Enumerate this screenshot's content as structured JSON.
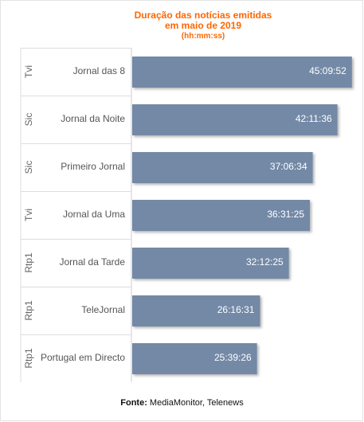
{
  "chart_data": {
    "type": "bar",
    "orientation": "horizontal",
    "title_lines": [
      "Duração das notícias emitidas",
      "em maio de 2019",
      "(hh:mm:ss)"
    ],
    "groups": [
      "Tvi",
      "Sic",
      "Sic",
      "Tvi",
      "Rtp1",
      "Rtp1",
      "Rtp1"
    ],
    "categories": [
      "Jornal das 8",
      "Jornal da Noite",
      "Primeiro Jornal",
      "Jornal da Uma",
      "Jornal da Tarde",
      "TeleJornal",
      "Portugal em Directo"
    ],
    "value_labels": [
      "45:09:52",
      "42:11:36",
      "37:06:34",
      "36:31:25",
      "32:12:25",
      "26:16:31",
      "25:39:26"
    ],
    "values_seconds": [
      162592,
      151896,
      133594,
      131485,
      115945,
      94591,
      92366
    ],
    "xlim_seconds": [
      0,
      168000
    ],
    "bar_color": "#7389a6",
    "title_color": "#ff6600"
  },
  "source": {
    "label": "Fonte:",
    "text": " MediaMonitor, Telenews"
  }
}
